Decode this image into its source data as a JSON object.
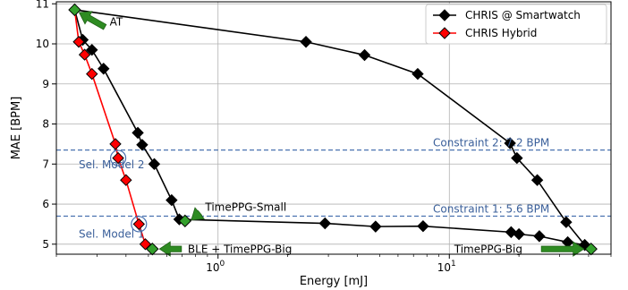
{
  "chart_data": {
    "type": "line",
    "title": "",
    "xlabel": "Energy [mJ]",
    "ylabel": "MAE [BPM]",
    "xscale": "log",
    "xlim": [
      0.2,
      50
    ],
    "ylim": [
      4.75,
      11.05
    ],
    "x_ticks": [
      {
        "value": 1,
        "label": "10",
        "sup": "0"
      },
      {
        "value": 10,
        "label": "10",
        "sup": "1"
      }
    ],
    "y_ticks": [
      5,
      6,
      7,
      8,
      9,
      10,
      11
    ],
    "grid": true,
    "legend_position": "top-right",
    "series": [
      {
        "name": "CHRIS @ Smartwatch",
        "color": "#000000",
        "points": [
          [
            0.24,
            10.85
          ],
          [
            0.26,
            10.1
          ],
          [
            0.285,
            9.85
          ],
          [
            0.32,
            9.38
          ],
          [
            0.45,
            7.78
          ],
          [
            0.47,
            7.48
          ],
          [
            0.53,
            7.0
          ],
          [
            0.63,
            6.1
          ],
          [
            0.68,
            5.62
          ],
          [
            2.9,
            5.52
          ],
          [
            4.8,
            5.44
          ],
          [
            7.7,
            5.45
          ],
          [
            18.5,
            5.3
          ],
          [
            20.0,
            5.25
          ],
          [
            24.5,
            5.2
          ],
          [
            32.5,
            5.05
          ],
          [
            38.5,
            4.98
          ],
          [
            41.0,
            4.88
          ]
        ]
      },
      {
        "name": "CHRIS Hybrid",
        "color": "#ff0000",
        "points": [
          [
            0.24,
            10.85
          ],
          [
            0.25,
            10.05
          ],
          [
            0.265,
            9.73
          ],
          [
            0.285,
            9.25
          ],
          [
            0.36,
            7.5
          ],
          [
            0.37,
            7.15
          ],
          [
            0.4,
            6.6
          ],
          [
            0.455,
            5.5
          ],
          [
            0.485,
            5.0
          ],
          [
            0.52,
            4.88
          ]
        ]
      },
      {
        "name": "CHRIS @ Smartwatch",
        "color": "#000000",
        "points": [
          [
            2.4,
            10.05
          ],
          [
            4.3,
            9.72
          ],
          [
            7.3,
            9.25
          ],
          [
            18.3,
            7.52
          ],
          [
            19.6,
            7.15
          ],
          [
            24.0,
            6.6
          ],
          [
            32.0,
            5.55
          ],
          [
            38.5,
            4.98
          ]
        ]
      }
    ],
    "highlight_points": [
      {
        "x": 0.24,
        "y": 10.85
      },
      {
        "x": 0.72,
        "y": 5.58
      },
      {
        "x": 0.52,
        "y": 4.88
      },
      {
        "x": 41.0,
        "y": 4.88
      }
    ],
    "highlight_color": "#33a02c",
    "selected_points": [
      {
        "x": 0.37,
        "y": 7.15
      },
      {
        "x": 0.455,
        "y": 5.5
      }
    ],
    "constraints": [
      {
        "y": 7.35,
        "label": "Constraint 2: 7.2 BPM",
        "label_x": 8.5
      },
      {
        "y": 5.7,
        "label": "Constraint 1: 5.6 BPM",
        "label_x": 8.5
      }
    ],
    "annotations": [
      {
        "text": "AT",
        "x": 0.34,
        "y": 10.55
      },
      {
        "text": "TimePPG-Small",
        "x": 0.88,
        "y": 5.92
      },
      {
        "text": "BLE + TimePPG-Big",
        "x": 0.74,
        "y": 4.87
      },
      {
        "text": "TimePPG-Big",
        "x": 10.5,
        "y": 4.87
      },
      {
        "text": "Sel. Model 2",
        "x": 0.25,
        "y": 6.98
      },
      {
        "text": "Sel. Model 1",
        "x": 0.25,
        "y": 5.25
      }
    ],
    "legend": [
      {
        "name": "CHRIS @ Smartwatch",
        "color": "#000000"
      },
      {
        "name": "CHRIS Hybrid",
        "color": "#ff0000"
      }
    ]
  }
}
